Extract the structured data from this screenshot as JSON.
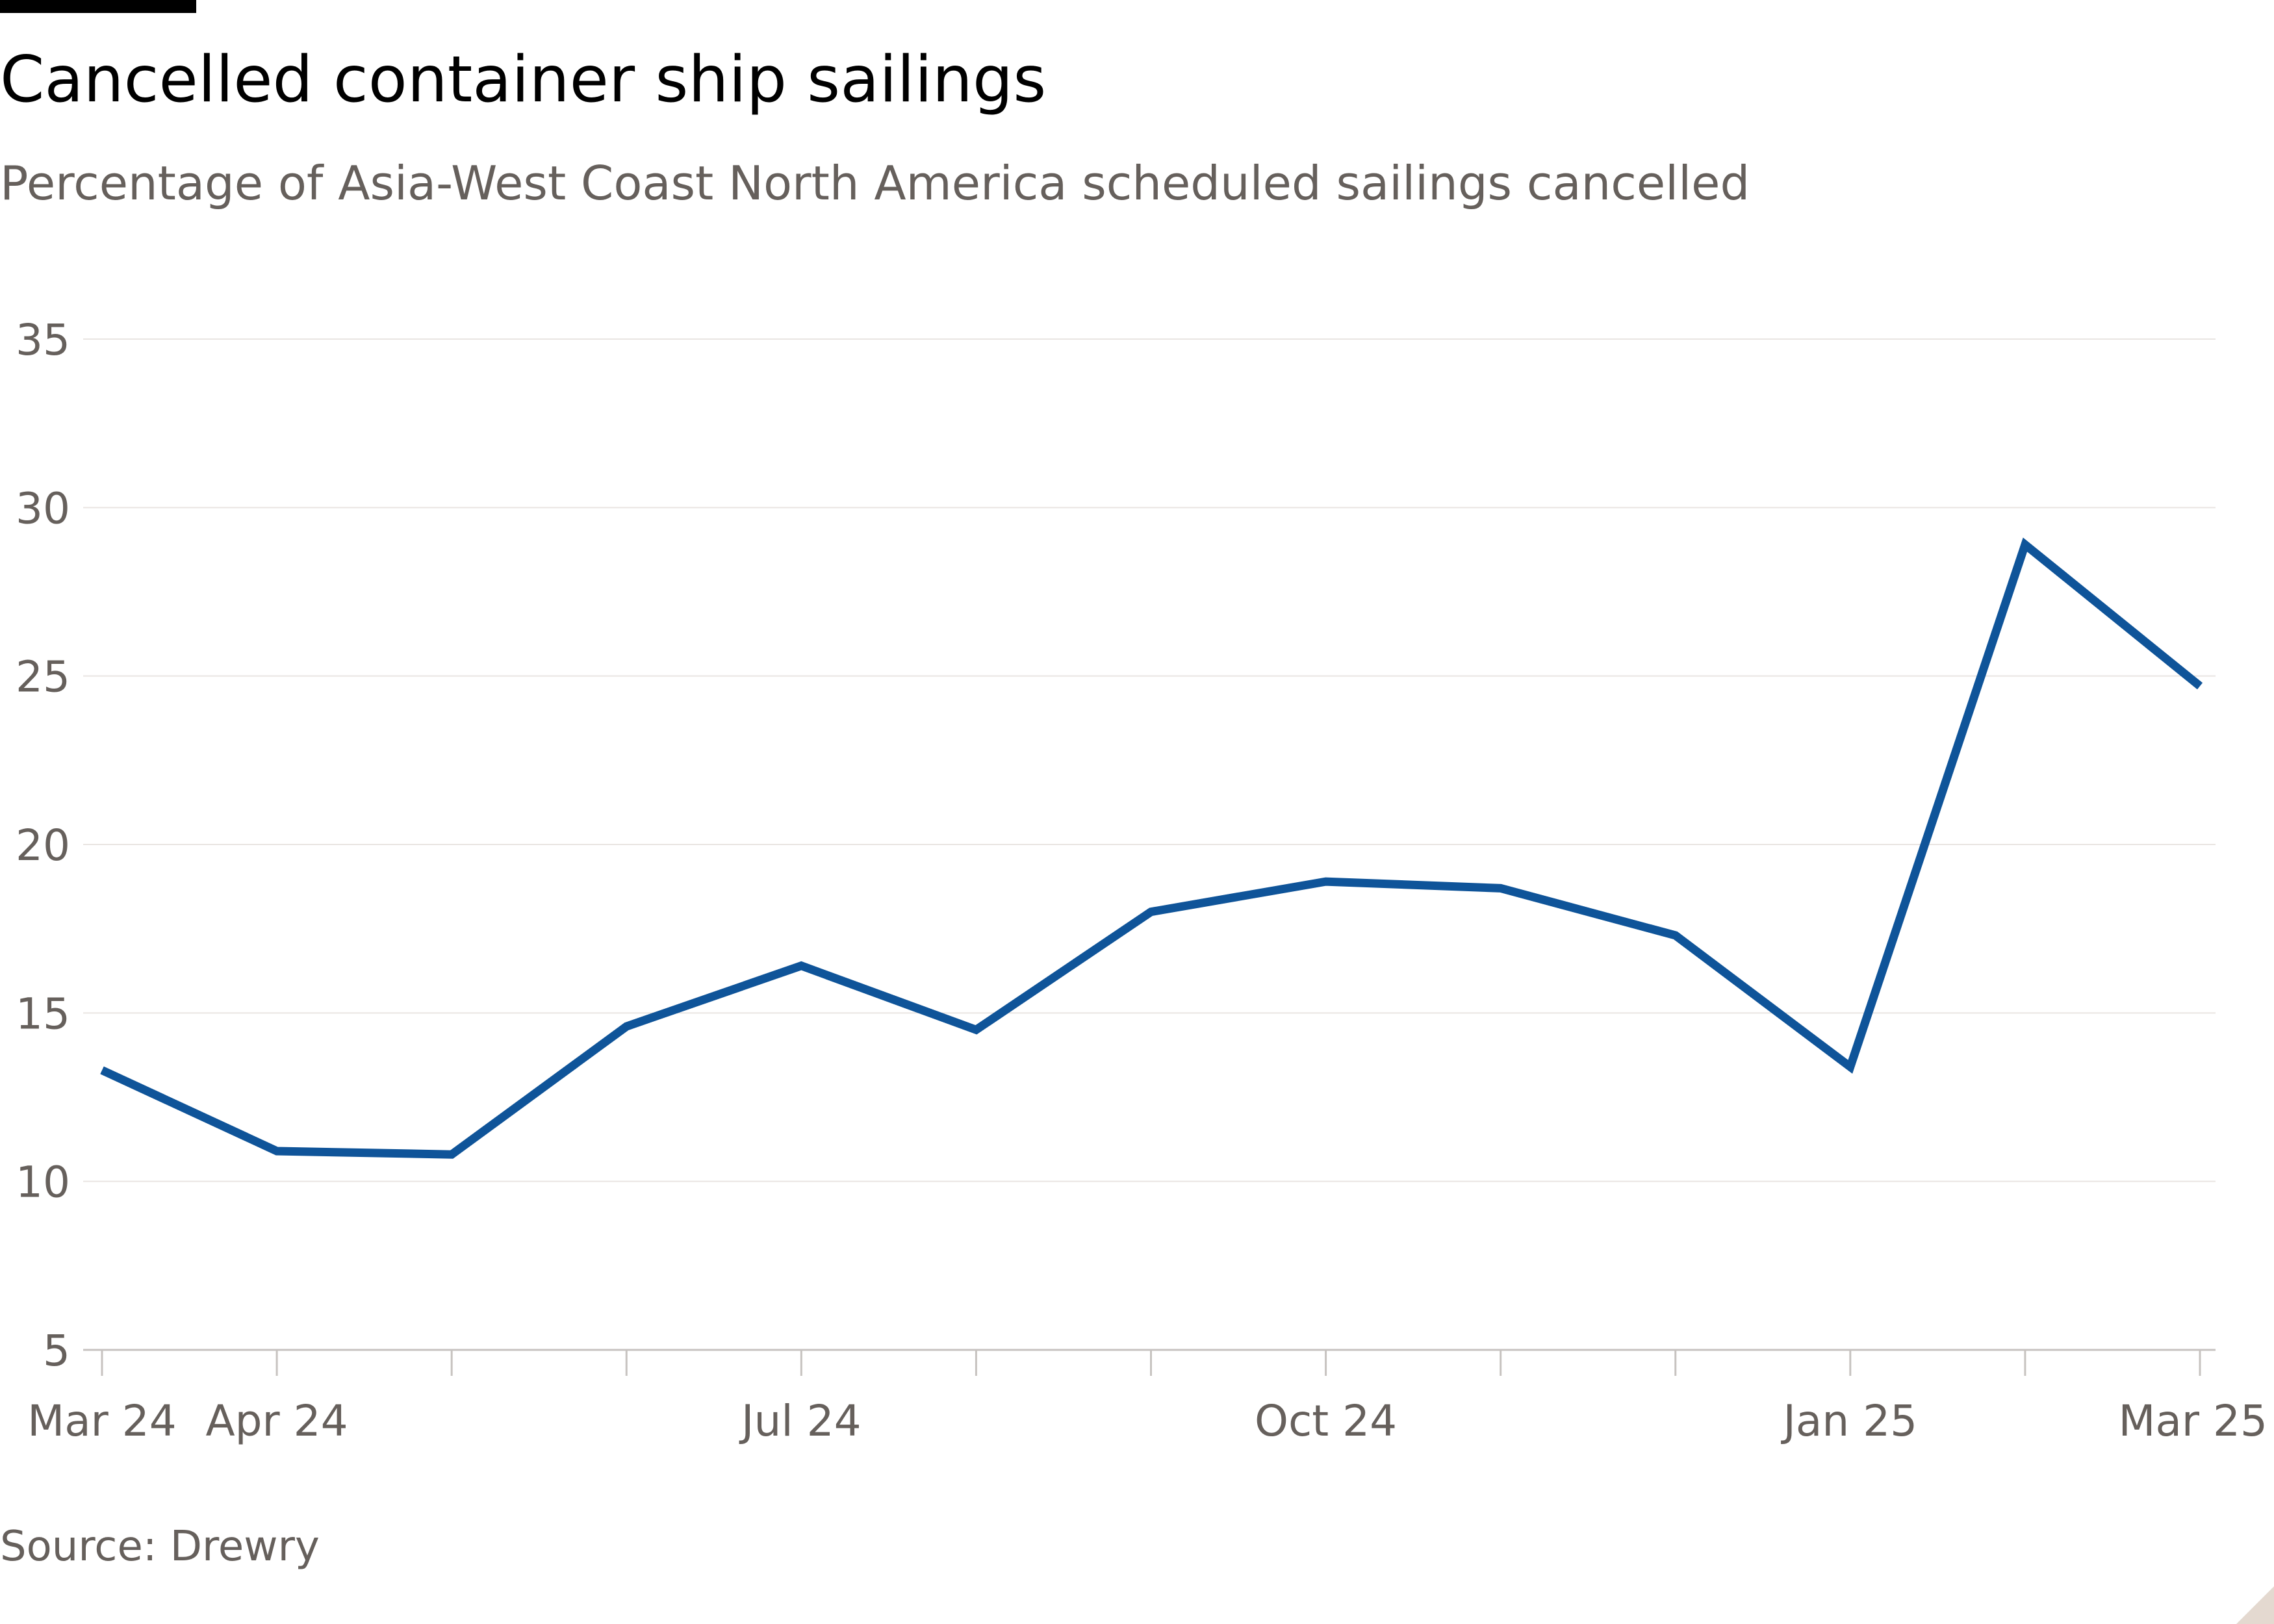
{
  "header": {
    "title": "Cancelled container ship sailings",
    "subtitle": "Percentage of Asia-West Coast North America scheduled sailings cancelled"
  },
  "footer": {
    "source": "Source: Drewry"
  },
  "colors": {
    "line": "#0f5499",
    "grid": "#e9e5e2",
    "tick_text": "#66605c",
    "axis": "#c7c3c0"
  },
  "chart_data": {
    "type": "line",
    "title": "Cancelled container ship sailings",
    "subtitle": "Percentage of Asia-West Coast North America scheduled sailings cancelled",
    "xlabel": "",
    "ylabel": "",
    "x": [
      "2024-03",
      "2024-04",
      "2024-05",
      "2024-06",
      "2024-07",
      "2024-08",
      "2024-09",
      "2024-10",
      "2024-11",
      "2024-12",
      "2025-01",
      "2025-02",
      "2025-03"
    ],
    "x_tick_labels": [
      {
        "index": 0,
        "label": "Mar 24"
      },
      {
        "index": 1,
        "label": "Apr 24"
      },
      {
        "index": 4,
        "label": "Jul 24"
      },
      {
        "index": 7,
        "label": "Oct 24"
      },
      {
        "index": 10,
        "label": "Jan 25"
      },
      {
        "index": 12,
        "label": "Mar 25"
      }
    ],
    "series": [
      {
        "values": [
          13.3,
          10.9,
          10.8,
          14.6,
          16.4,
          14.5,
          18.0,
          18.9,
          18.7,
          17.3,
          13.4,
          28.9,
          24.7
        ]
      }
    ],
    "ylim": [
      5,
      35
    ],
    "y_ticks": [
      5,
      10,
      15,
      20,
      25,
      30,
      35
    ],
    "grid": true,
    "legend": "none"
  }
}
